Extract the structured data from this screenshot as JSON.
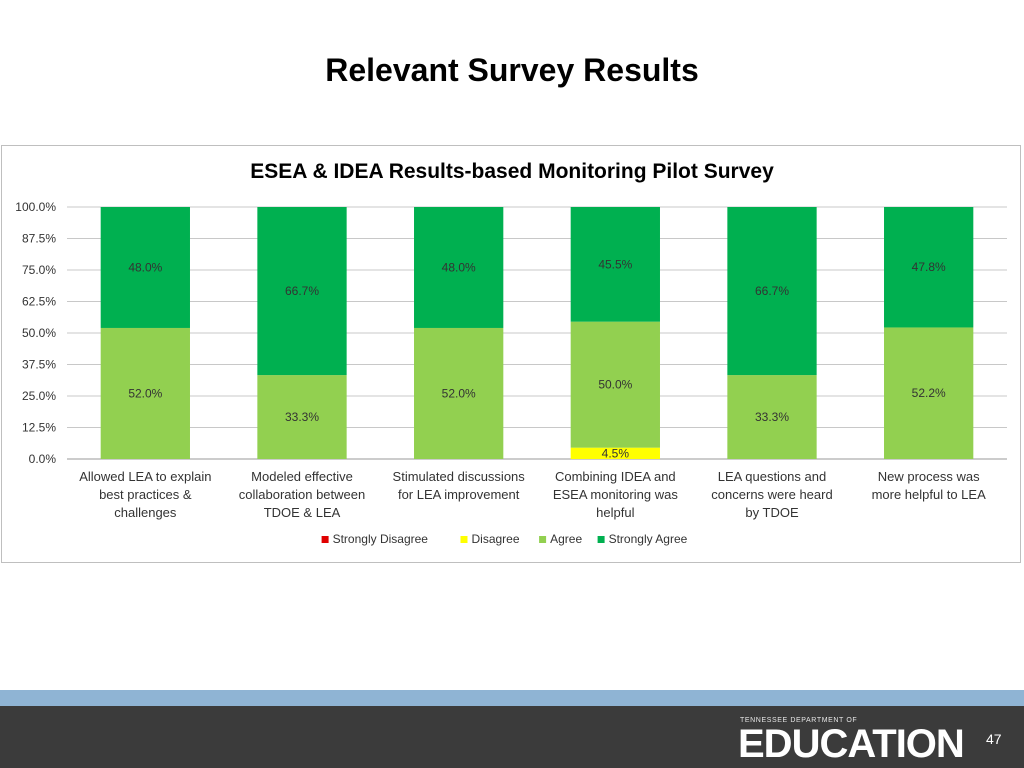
{
  "slide": {
    "title": "Relevant Survey Results",
    "page_number": "47",
    "logo": {
      "department": "TENNESSEE DEPARTMENT OF",
      "word": "EDUCATION"
    }
  },
  "chart_data": {
    "type": "bar",
    "stacked": true,
    "title": "ESEA & IDEA Results-based  Monitoring Pilot Survey",
    "xlabel": "",
    "ylabel": "",
    "ylim": [
      0,
      100
    ],
    "yticks": [
      "0.0%",
      "12.5%",
      "25.0%",
      "37.5%",
      "50.0%",
      "62.5%",
      "75.0%",
      "87.5%",
      "100.0%"
    ],
    "grid": true,
    "legend_position": "bottom",
    "categories": [
      [
        "Allowed LEA to explain",
        "best practices &",
        "challenges"
      ],
      [
        "Modeled effective",
        "collaboration between",
        "TDOE & LEA"
      ],
      [
        "Stimulated discussions",
        "for LEA improvement"
      ],
      [
        "Combining IDEA and",
        "ESEA monitoring was",
        "helpful"
      ],
      [
        "LEA questions and",
        "concerns were heard",
        "by TDOE"
      ],
      [
        "New process was",
        "more helpful to LEA"
      ]
    ],
    "series": [
      {
        "name": "Strongly Disagree",
        "color": "#e00000",
        "values": [
          0,
          0,
          0,
          0,
          0,
          0
        ],
        "labels": [
          "",
          "",
          "",
          "",
          "",
          ""
        ]
      },
      {
        "name": "Disagree",
        "color": "#ffff00",
        "values": [
          0,
          0,
          0,
          4.5,
          0,
          0
        ],
        "labels": [
          "",
          "",
          "",
          "4.5%",
          "",
          ""
        ]
      },
      {
        "name": "Agree",
        "color": "#92d050",
        "values": [
          52.0,
          33.3,
          52.0,
          50.0,
          33.3,
          52.2
        ],
        "labels": [
          "52.0%",
          "33.3%",
          "52.0%",
          "50.0%",
          "33.3%",
          "52.2%"
        ]
      },
      {
        "name": "Strongly Agree",
        "color": "#00b050",
        "values": [
          48.0,
          66.7,
          48.0,
          45.5,
          66.7,
          47.8
        ],
        "labels": [
          "48.0%",
          "66.7%",
          "48.0%",
          "45.5%",
          "66.7%",
          "47.8%"
        ]
      }
    ]
  }
}
